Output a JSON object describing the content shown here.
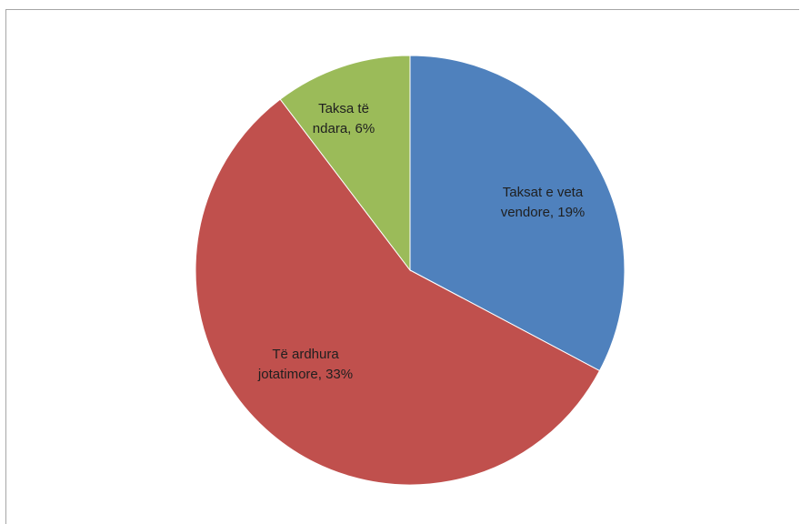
{
  "chart_data": {
    "type": "pie",
    "title": "",
    "start_angle_deg": 0,
    "direction": "clockwise",
    "slices": [
      {
        "label_lines": [
          "Taksat e veta",
          "vendore, 19%"
        ],
        "value": 19,
        "color": "#4f81bd"
      },
      {
        "label_lines": [
          "Të ardhura",
          "jotatimore, 33%"
        ],
        "value": 33,
        "color": "#c0504d"
      },
      {
        "label_lines": [
          "Taksa të",
          "ndara, 6%"
        ],
        "value": 6,
        "color": "#9bbb59"
      }
    ]
  }
}
